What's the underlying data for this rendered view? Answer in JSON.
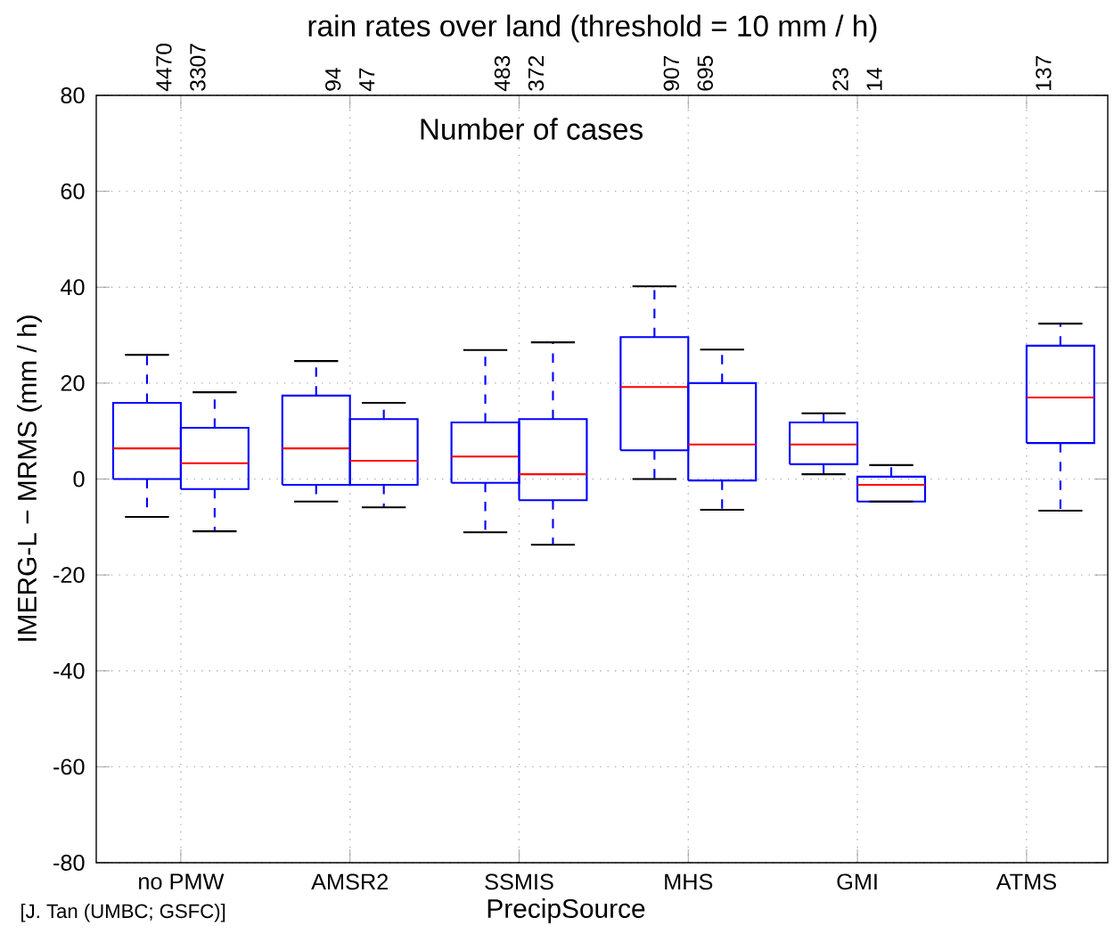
{
  "chart_data": {
    "type": "box",
    "title": "rain rates over land (threshold = 10 mm / h)",
    "xlabel": "PrecipSource",
    "ylabel": "IMERG-L − MRMS (mm / h)",
    "categories": [
      "no PMW",
      "AMSR2",
      "SSMIS",
      "MHS",
      "GMI",
      "ATMS"
    ],
    "ylim": [
      -80,
      80
    ],
    "yticks": [
      -80,
      -60,
      -40,
      -20,
      0,
      20,
      40,
      60,
      80
    ],
    "grid": true,
    "annotations": [
      "Number of cases",
      "[J. Tan (UMBC; GSFC)]"
    ],
    "series": [
      {
        "color": "#0000ff",
        "value_labels": [
          "4470",
          "94",
          "483",
          "907",
          "23",
          null
        ],
        "boxes": [
          {
            "low": -7.9,
            "q1": 0,
            "median": 6.4,
            "q3": 15.9,
            "high": 25.9
          },
          {
            "low": -4.7,
            "q1": -1.2,
            "median": 6.4,
            "q3": 17.4,
            "high": 24.6
          },
          {
            "low": -11.1,
            "q1": -0.8,
            "median": 4.7,
            "q3": 11.8,
            "high": 26.9
          },
          {
            "low": 0,
            "q1": 6.0,
            "median": 19.2,
            "q3": 29.6,
            "high": 40.2
          },
          {
            "low": 1.0,
            "q1": 3.1,
            "median": 7.2,
            "q3": 11.8,
            "high": 13.7
          },
          null
        ]
      },
      {
        "color": "#0000ff",
        "value_labels": [
          "3307",
          "47",
          "372",
          "695",
          "14",
          "137"
        ],
        "boxes": [
          {
            "low": -10.9,
            "q1": -2.1,
            "median": 3.3,
            "q3": 10.7,
            "high": 18.1
          },
          {
            "low": -5.9,
            "q1": -1.2,
            "median": 3.8,
            "q3": 12.5,
            "high": 15.9
          },
          {
            "low": -13.7,
            "q1": -4.4,
            "median": 1.0,
            "q3": 12.5,
            "high": 28.5
          },
          {
            "low": -6.4,
            "q1": -0.3,
            "median": 7.2,
            "q3": 20.0,
            "high": 27.0
          },
          {
            "low": -4.7,
            "q1": -4.7,
            "median": -1.2,
            "q3": 0.5,
            "high": 2.9
          },
          {
            "low": -6.6,
            "q1": 7.5,
            "median": 17.0,
            "q3": 27.8,
            "high": 32.4
          }
        ]
      }
    ]
  }
}
